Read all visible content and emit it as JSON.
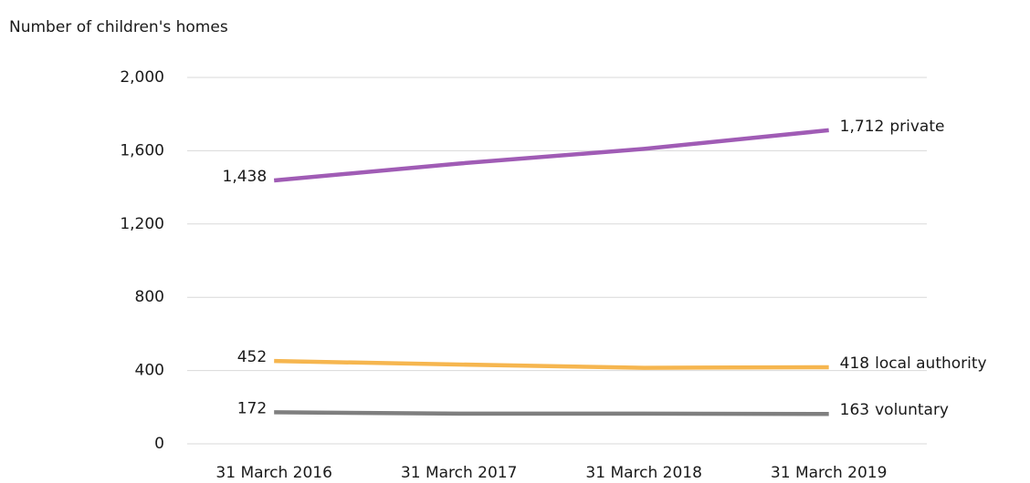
{
  "chart_data": {
    "type": "line",
    "y_label": "Number of children's homes",
    "categories": [
      "31 March 2016",
      "31 March 2017",
      "31 March 2018",
      "31 March 2019"
    ],
    "series": [
      {
        "name": "private",
        "color": "#a05cb5",
        "values": [
          1438,
          1530,
          1610,
          1712
        ],
        "value_labels": [
          "1,438",
          null,
          null,
          "1,712"
        ]
      },
      {
        "name": "local authority",
        "color": "#f6b64f",
        "values": [
          452,
          433,
          415,
          418
        ],
        "value_labels": [
          "452",
          null,
          null,
          "418"
        ]
      },
      {
        "name": "voluntary",
        "color": "#7f7f7f",
        "values": [
          172,
          165,
          165,
          163
        ],
        "value_labels": [
          "172",
          null,
          null,
          "163"
        ]
      }
    ],
    "ylim": [
      0,
      2000
    ],
    "yticks": [
      0,
      400,
      800,
      {
        "value": 1200,
        "label": "1,200"
      },
      {
        "value": 1600,
        "label": "1,600"
      },
      {
        "value": 2000,
        "label": "2,000"
      }
    ],
    "grid": true
  }
}
